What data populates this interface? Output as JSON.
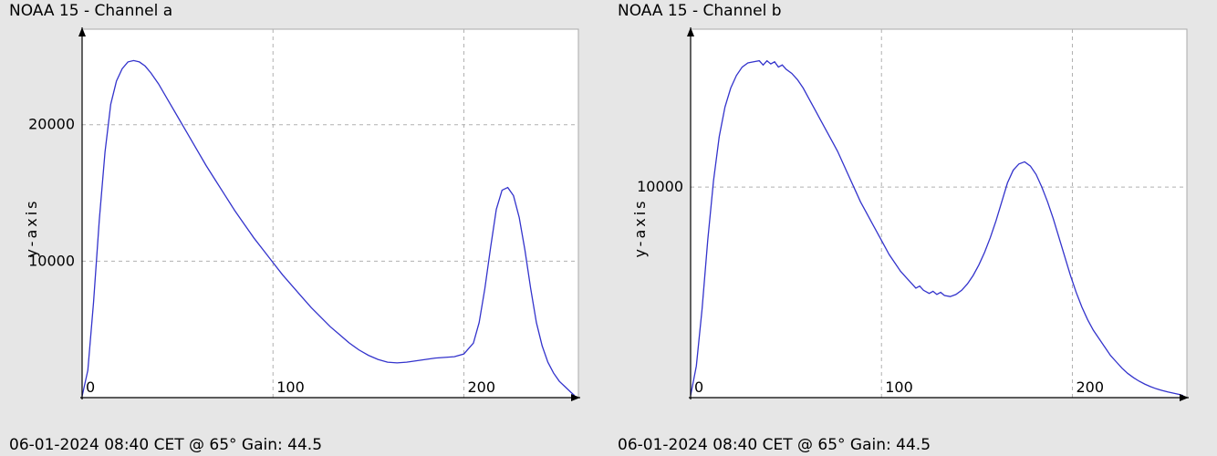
{
  "background_color": "#e6e6e6",
  "panels": [
    {
      "title": "NOAA 15 - Channel a",
      "footer": "06-01-2024 08:40 CET @ 65° Gain: 44.5",
      "ylabel": "y-axis",
      "chart": {
        "type": "line",
        "plot_bg": "#ffffff",
        "plot_border": "#aaaaaa",
        "grid_color": "#b0b0b0",
        "grid_dash": "4 4",
        "title_fontsize": 17,
        "tick_fontsize": 16,
        "line_color": "#3333cc",
        "line_width": 1.3,
        "xlim": [
          0,
          260
        ],
        "ylim": [
          0,
          27000
        ],
        "xticks": [
          0,
          100,
          200
        ],
        "yticks": [
          10000,
          20000
        ],
        "data": [
          [
            0,
            100
          ],
          [
            3,
            2000
          ],
          [
            6,
            7000
          ],
          [
            9,
            13000
          ],
          [
            12,
            18000
          ],
          [
            15,
            21500
          ],
          [
            18,
            23200
          ],
          [
            21,
            24100
          ],
          [
            24,
            24600
          ],
          [
            27,
            24700
          ],
          [
            30,
            24600
          ],
          [
            33,
            24300
          ],
          [
            36,
            23800
          ],
          [
            40,
            23000
          ],
          [
            45,
            21800
          ],
          [
            50,
            20600
          ],
          [
            55,
            19400
          ],
          [
            60,
            18200
          ],
          [
            65,
            17000
          ],
          [
            70,
            15900
          ],
          [
            75,
            14800
          ],
          [
            80,
            13700
          ],
          [
            85,
            12700
          ],
          [
            90,
            11700
          ],
          [
            95,
            10800
          ],
          [
            100,
            9900
          ],
          [
            105,
            9000
          ],
          [
            110,
            8200
          ],
          [
            115,
            7400
          ],
          [
            120,
            6600
          ],
          [
            125,
            5900
          ],
          [
            130,
            5200
          ],
          [
            135,
            4600
          ],
          [
            140,
            4000
          ],
          [
            145,
            3500
          ],
          [
            150,
            3100
          ],
          [
            155,
            2800
          ],
          [
            160,
            2600
          ],
          [
            165,
            2550
          ],
          [
            170,
            2600
          ],
          [
            175,
            2700
          ],
          [
            180,
            2800
          ],
          [
            185,
            2900
          ],
          [
            190,
            2950
          ],
          [
            195,
            3000
          ],
          [
            200,
            3200
          ],
          [
            205,
            4000
          ],
          [
            208,
            5500
          ],
          [
            211,
            8000
          ],
          [
            214,
            11000
          ],
          [
            217,
            13800
          ],
          [
            220,
            15200
          ],
          [
            223,
            15400
          ],
          [
            226,
            14800
          ],
          [
            229,
            13200
          ],
          [
            232,
            10800
          ],
          [
            235,
            8000
          ],
          [
            238,
            5500
          ],
          [
            241,
            3800
          ],
          [
            244,
            2600
          ],
          [
            247,
            1800
          ],
          [
            250,
            1200
          ],
          [
            253,
            800
          ],
          [
            256,
            400
          ],
          [
            258,
            150
          ]
        ]
      }
    },
    {
      "title": "NOAA 15 - Channel b",
      "footer": "06-01-2024 08:40 CET @ 65° Gain: 44.5",
      "ylabel": "y-axis",
      "chart": {
        "type": "line",
        "plot_bg": "#ffffff",
        "plot_border": "#aaaaaa",
        "grid_color": "#b0b0b0",
        "grid_dash": "4 4",
        "title_fontsize": 17,
        "tick_fontsize": 16,
        "line_color": "#3333cc",
        "line_width": 1.3,
        "xlim": [
          0,
          260
        ],
        "ylim": [
          0,
          17500
        ],
        "xticks": [
          0,
          100,
          200
        ],
        "yticks": [
          10000
        ],
        "data": [
          [
            0,
            100
          ],
          [
            3,
            1500
          ],
          [
            6,
            4200
          ],
          [
            9,
            7500
          ],
          [
            12,
            10300
          ],
          [
            15,
            12400
          ],
          [
            18,
            13800
          ],
          [
            21,
            14700
          ],
          [
            24,
            15300
          ],
          [
            27,
            15700
          ],
          [
            30,
            15900
          ],
          [
            33,
            15950
          ],
          [
            36,
            16000
          ],
          [
            38,
            15800
          ],
          [
            40,
            16000
          ],
          [
            42,
            15850
          ],
          [
            44,
            15950
          ],
          [
            46,
            15700
          ],
          [
            48,
            15800
          ],
          [
            50,
            15600
          ],
          [
            53,
            15400
          ],
          [
            56,
            15100
          ],
          [
            59,
            14700
          ],
          [
            62,
            14200
          ],
          [
            65,
            13700
          ],
          [
            68,
            13200
          ],
          [
            71,
            12700
          ],
          [
            74,
            12200
          ],
          [
            77,
            11700
          ],
          [
            80,
            11100
          ],
          [
            83,
            10500
          ],
          [
            86,
            9900
          ],
          [
            89,
            9300
          ],
          [
            92,
            8800
          ],
          [
            95,
            8300
          ],
          [
            98,
            7800
          ],
          [
            101,
            7300
          ],
          [
            104,
            6800
          ],
          [
            107,
            6400
          ],
          [
            110,
            6000
          ],
          [
            113,
            5700
          ],
          [
            116,
            5400
          ],
          [
            118,
            5200
          ],
          [
            120,
            5300
          ],
          [
            122,
            5100
          ],
          [
            125,
            4950
          ],
          [
            127,
            5050
          ],
          [
            129,
            4900
          ],
          [
            131,
            5000
          ],
          [
            133,
            4850
          ],
          [
            136,
            4800
          ],
          [
            139,
            4900
          ],
          [
            142,
            5100
          ],
          [
            145,
            5400
          ],
          [
            148,
            5800
          ],
          [
            151,
            6300
          ],
          [
            154,
            6900
          ],
          [
            157,
            7600
          ],
          [
            160,
            8400
          ],
          [
            163,
            9300
          ],
          [
            166,
            10200
          ],
          [
            169,
            10800
          ],
          [
            172,
            11100
          ],
          [
            175,
            11200
          ],
          [
            178,
            11000
          ],
          [
            181,
            10600
          ],
          [
            184,
            10000
          ],
          [
            187,
            9300
          ],
          [
            190,
            8500
          ],
          [
            193,
            7600
          ],
          [
            196,
            6700
          ],
          [
            199,
            5800
          ],
          [
            202,
            5000
          ],
          [
            205,
            4300
          ],
          [
            208,
            3700
          ],
          [
            211,
            3200
          ],
          [
            214,
            2800
          ],
          [
            217,
            2400
          ],
          [
            220,
            2000
          ],
          [
            223,
            1700
          ],
          [
            226,
            1400
          ],
          [
            229,
            1150
          ],
          [
            232,
            950
          ],
          [
            235,
            780
          ],
          [
            238,
            640
          ],
          [
            241,
            520
          ],
          [
            244,
            420
          ],
          [
            247,
            340
          ],
          [
            250,
            270
          ],
          [
            253,
            210
          ],
          [
            256,
            150
          ],
          [
            258,
            100
          ]
        ]
      }
    }
  ]
}
